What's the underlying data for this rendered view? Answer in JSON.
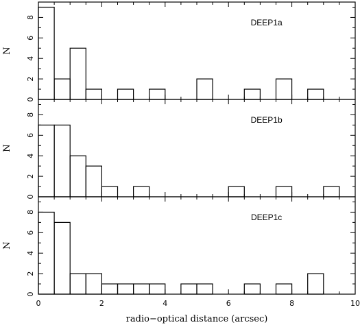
{
  "chart_data": [
    {
      "type": "bar",
      "label": "DEEP1a",
      "ylabel": "N",
      "xlim": [
        0,
        10
      ],
      "ylim": [
        0,
        9.5
      ],
      "yticks": [
        "0",
        "2",
        "4",
        "6",
        "8"
      ],
      "bin_width": 0.5,
      "bins": [
        0,
        0.5,
        1.0,
        1.5,
        2.0,
        2.5,
        3.0,
        3.5,
        4.0,
        4.5,
        5.0,
        5.5,
        6.0,
        6.5,
        7.0,
        7.5,
        8.0,
        8.5,
        9.0,
        9.5
      ],
      "values": [
        9,
        2,
        5,
        1,
        0,
        1,
        0,
        1,
        0,
        0,
        2,
        0,
        0,
        1,
        0,
        2,
        0,
        1,
        0,
        0
      ],
      "hatched_max_x": 1.5
    },
    {
      "type": "bar",
      "label": "DEEP1b",
      "ylabel": "N",
      "xlim": [
        0,
        10
      ],
      "ylim": [
        0,
        9.5
      ],
      "yticks": [
        "0",
        "2",
        "4",
        "6",
        "8"
      ],
      "bin_width": 0.5,
      "bins": [
        0,
        0.5,
        1.0,
        1.5,
        2.0,
        2.5,
        3.0,
        3.5,
        4.0,
        4.5,
        5.0,
        5.5,
        6.0,
        6.5,
        7.0,
        7.5,
        8.0,
        8.5,
        9.0,
        9.5
      ],
      "values": [
        7,
        7,
        4,
        3,
        1,
        0,
        1,
        0,
        0,
        0,
        0,
        0,
        1,
        0,
        0,
        1,
        0,
        0,
        1,
        0
      ],
      "hatched_max_x": 2.0
    },
    {
      "type": "bar",
      "label": "DEEP1c",
      "ylabel": "N",
      "xlabel": "radio−optical distance (arcsec)",
      "xlim": [
        0,
        10
      ],
      "ylim": [
        0,
        9.5
      ],
      "xticks": [
        "0",
        "2",
        "4",
        "6",
        "8",
        "10"
      ],
      "yticks": [
        "0",
        "2",
        "4",
        "6",
        "8"
      ],
      "bin_width": 0.5,
      "bins": [
        0,
        0.5,
        1.0,
        1.5,
        2.0,
        2.5,
        3.0,
        3.5,
        4.0,
        4.5,
        5.0,
        5.5,
        6.0,
        6.5,
        7.0,
        7.5,
        8.0,
        8.5,
        9.0,
        9.5
      ],
      "values": [
        8,
        7,
        2,
        2,
        1,
        1,
        1,
        1,
        0,
        1,
        1,
        0,
        0,
        1,
        0,
        1,
        0,
        2,
        0,
        0
      ],
      "hatched_max_x": 2.0
    }
  ]
}
